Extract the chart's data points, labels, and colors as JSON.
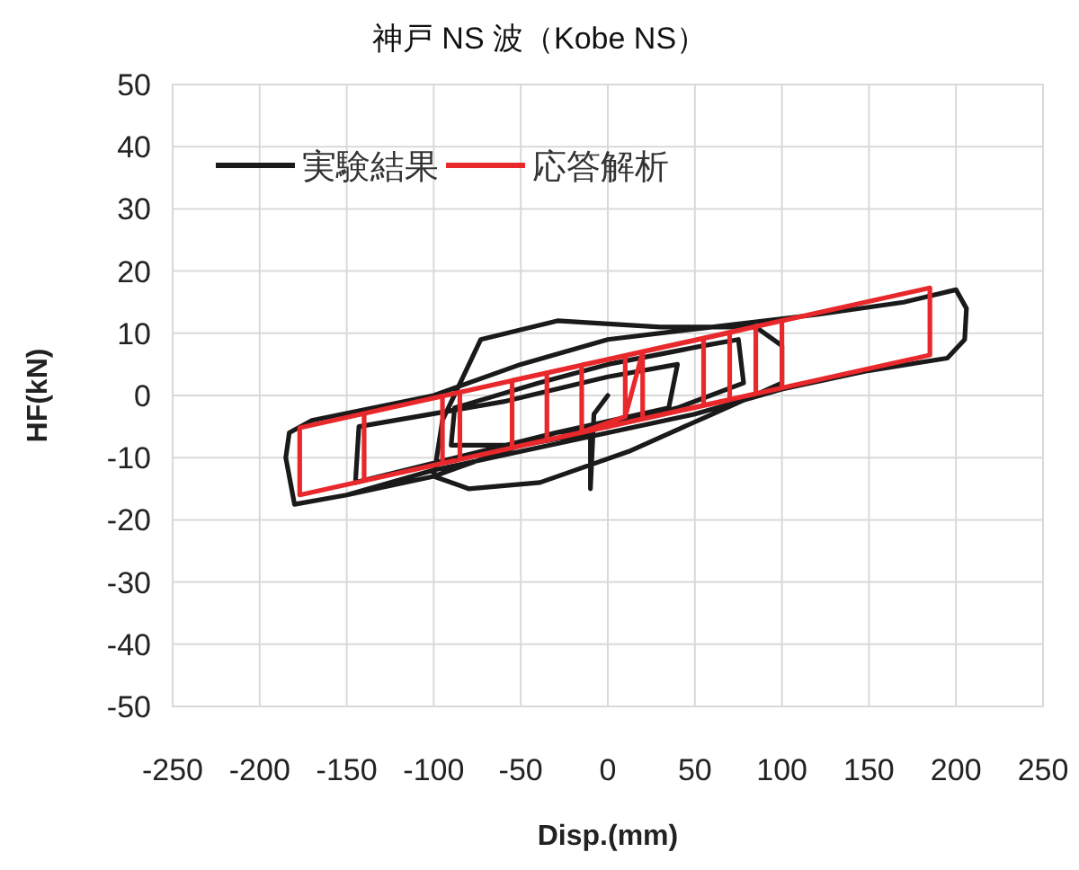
{
  "chart_data": {
    "type": "line",
    "title": "神戸 NS 波（Kobe NS）",
    "xlabel": "Disp.(mm)",
    "ylabel": "HF(kN)",
    "xlim": [
      -250,
      250
    ],
    "ylim": [
      -50,
      50
    ],
    "xticks": [
      -250,
      -200,
      -150,
      -100,
      -50,
      0,
      50,
      100,
      150,
      200,
      250
    ],
    "yticks": [
      -50,
      -40,
      -30,
      -20,
      -10,
      0,
      10,
      20,
      30,
      40,
      50
    ],
    "grid": true,
    "legend": "top left",
    "series": [
      {
        "name": "実験結果",
        "color": "#1a1a1a",
        "x": [
          0,
          -8,
          -10,
          -10,
          -50,
          -90,
          -88,
          -40,
          0,
          55,
          75,
          78,
          40,
          0,
          -30,
          -145,
          -143,
          -60,
          0,
          40,
          35,
          -30,
          -100,
          -95,
          -73,
          -29,
          30,
          85,
          100,
          100,
          60,
          12,
          -39,
          -80,
          -100,
          -150,
          -180,
          -185,
          -183,
          -170,
          -100,
          -50,
          0,
          60,
          120,
          170,
          200,
          206,
          205,
          195,
          150,
          100,
          50,
          0,
          -50,
          -100,
          -150,
          -180
        ],
        "values": [
          0,
          -3,
          -15,
          -6,
          -8,
          -8,
          -2,
          2,
          5,
          8,
          9,
          2,
          -2,
          -5,
          -6,
          -14,
          -5,
          -1,
          3,
          5,
          -2,
          -6,
          -13,
          -4,
          9,
          12,
          11,
          11,
          8,
          2,
          -3,
          -9,
          -14,
          -15,
          -13,
          -16,
          -17.5,
          -10,
          -6,
          -4,
          0,
          5,
          9,
          11,
          13,
          15,
          17,
          14,
          9,
          6,
          4,
          1,
          -3,
          -6,
          -9,
          -12,
          -16,
          -17.5
        ]
      },
      {
        "name": "応答解析",
        "color": "#e8282b",
        "x": [
          10,
          10,
          -15,
          -15,
          10,
          20,
          20,
          -35,
          -35,
          20,
          55,
          55,
          -55,
          -55,
          55,
          70,
          70,
          -85,
          -85,
          70,
          85,
          85,
          -95,
          -95,
          85,
          100,
          100,
          -140,
          -140,
          100,
          185,
          185,
          -177,
          -177,
          185
        ],
        "values": [
          -3.4,
          6.4,
          4.9,
          -5.9,
          -3.4,
          7.0,
          -3.8,
          -7.2,
          3.6,
          7.0,
          9.2,
          -1.6,
          -8.4,
          2.4,
          9.2,
          10.1,
          -0.7,
          -10.3,
          0.5,
          10.1,
          11.1,
          0.3,
          -10.9,
          -0.1,
          11.1,
          12.0,
          1.2,
          -13.7,
          -2.9,
          12.0,
          17.3,
          6.5,
          -16.0,
          -5.2,
          17.3
        ]
      }
    ]
  }
}
